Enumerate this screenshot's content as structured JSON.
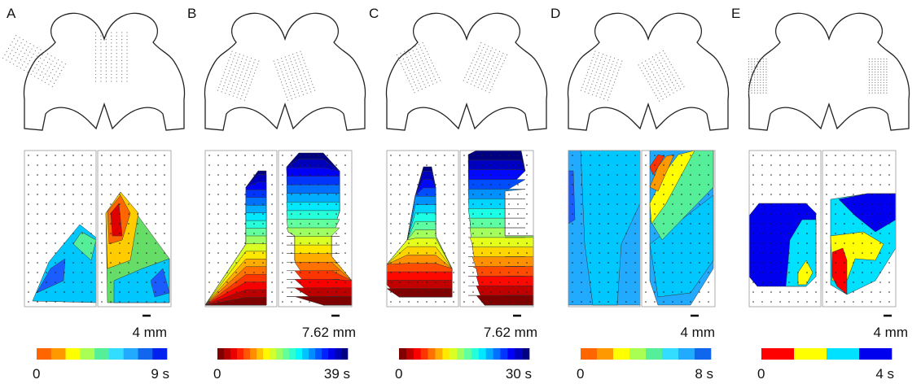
{
  "panels": [
    {
      "label": "A",
      "scale": "4 mm",
      "colorbar": {
        "min": "0",
        "max": "9 s"
      }
    },
    {
      "label": "B",
      "scale": "7.62 mm",
      "colorbar": {
        "min": "0",
        "max": "39 s"
      }
    },
    {
      "label": "C",
      "scale": "7.62 mm",
      "colorbar": {
        "min": "0",
        "max": "30 s"
      }
    },
    {
      "label": "D",
      "scale": "4 mm",
      "colorbar": {
        "min": "0",
        "max": "8 s"
      }
    },
    {
      "label": "E",
      "scale": "4 mm",
      "colorbar": {
        "min": "0",
        "max": "4 s"
      }
    }
  ]
}
